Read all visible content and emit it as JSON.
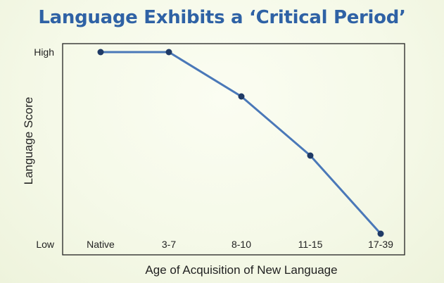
{
  "chart_data": {
    "type": "line",
    "title": "Language Exhibits a ‘Critical Period’",
    "xlabel": "Age of Acquisition of New Language",
    "ylabel": "Language Score",
    "categories": [
      "Native",
      "3-7",
      "8-10",
      "11-15",
      "17-39"
    ],
    "y_tick_labels": [
      "High",
      "Low"
    ],
    "ylim": [
      0,
      1
    ],
    "series": [
      {
        "values": [
          0.96,
          0.96,
          0.75,
          0.47,
          0.1
        ]
      }
    ],
    "line_color": "#4a78b8",
    "marker_color": "#1f3a66",
    "title_color": "#2f62a5",
    "grid": false,
    "legend": "none"
  }
}
